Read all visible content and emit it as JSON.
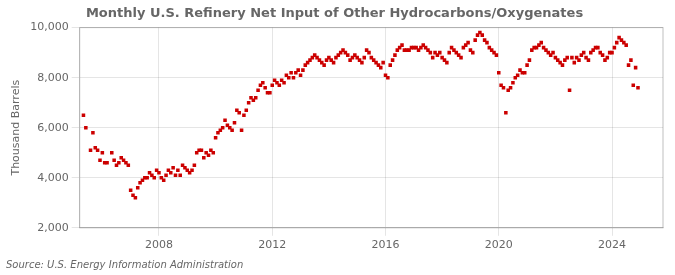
{
  "chart_data": {
    "type": "scatter",
    "title": "Monthly U.S. Refinery Net Input of Other Hydrocarbons/Oxygenates",
    "ylabel": "Thousand Barrels",
    "annotations": [
      "Source: U.S. Energy Information Administration"
    ],
    "color": "#cc0000",
    "marker": "square",
    "grid": true,
    "xlim": [
      2005.2,
      2025.8
    ],
    "xticks": [
      2008,
      2012,
      2016,
      2020,
      2024
    ],
    "ylim": [
      2000,
      10000
    ],
    "yticks": [
      {
        "value": 2000,
        "label": "2,000"
      },
      {
        "value": 4000,
        "label": "4,000"
      },
      {
        "value": 6000,
        "label": "6,000"
      },
      {
        "value": 8000,
        "label": "8,000"
      },
      {
        "value": 10000,
        "label": "10,000"
      }
    ],
    "x": [
      2005.333,
      2005.417,
      2005.583,
      2005.667,
      2005.75,
      2005.833,
      2005.917,
      2006.0,
      2006.083,
      2006.167,
      2006.333,
      2006.417,
      2006.5,
      2006.583,
      2006.667,
      2006.75,
      2006.833,
      2006.917,
      2007.0,
      2007.083,
      2007.167,
      2007.25,
      2007.333,
      2007.417,
      2007.5,
      2007.583,
      2007.667,
      2007.75,
      2007.833,
      2007.917,
      2008.0,
      2008.083,
      2008.167,
      2008.25,
      2008.333,
      2008.417,
      2008.5,
      2008.583,
      2008.667,
      2008.75,
      2008.833,
      2008.917,
      2009.0,
      2009.083,
      2009.167,
      2009.25,
      2009.333,
      2009.417,
      2009.5,
      2009.583,
      2009.667,
      2009.75,
      2009.833,
      2009.917,
      2010.0,
      2010.083,
      2010.167,
      2010.25,
      2010.333,
      2010.417,
      2010.5,
      2010.583,
      2010.667,
      2010.75,
      2010.833,
      2010.917,
      2011.0,
      2011.083,
      2011.167,
      2011.25,
      2011.333,
      2011.417,
      2011.5,
      2011.583,
      2011.667,
      2011.75,
      2011.833,
      2011.917,
      2012.0,
      2012.083,
      2012.167,
      2012.25,
      2012.333,
      2012.417,
      2012.5,
      2012.583,
      2012.667,
      2012.75,
      2012.833,
      2012.917,
      2013.0,
      2013.083,
      2013.167,
      2013.25,
      2013.333,
      2013.417,
      2013.5,
      2013.583,
      2013.667,
      2013.75,
      2013.833,
      2013.917,
      2014.0,
      2014.083,
      2014.167,
      2014.25,
      2014.333,
      2014.417,
      2014.5,
      2014.583,
      2014.667,
      2014.75,
      2014.833,
      2014.917,
      2015.0,
      2015.083,
      2015.167,
      2015.25,
      2015.333,
      2015.417,
      2015.5,
      2015.583,
      2015.667,
      2015.75,
      2015.833,
      2015.917,
      2016.0,
      2016.083,
      2016.167,
      2016.25,
      2016.333,
      2016.417,
      2016.5,
      2016.583,
      2016.667,
      2016.75,
      2016.833,
      2016.917,
      2017.0,
      2017.083,
      2017.167,
      2017.25,
      2017.333,
      2017.417,
      2017.5,
      2017.583,
      2017.667,
      2017.75,
      2017.833,
      2017.917,
      2018.0,
      2018.083,
      2018.167,
      2018.25,
      2018.333,
      2018.417,
      2018.5,
      2018.583,
      2018.667,
      2018.75,
      2018.833,
      2018.917,
      2019.0,
      2019.083,
      2019.167,
      2019.25,
      2019.333,
      2019.417,
      2019.5,
      2019.583,
      2019.667,
      2019.75,
      2019.833,
      2019.917,
      2020.0,
      2020.083,
      2020.167,
      2020.25,
      2020.333,
      2020.417,
      2020.5,
      2020.583,
      2020.667,
      2020.75,
      2020.833,
      2020.917,
      2021.0,
      2021.083,
      2021.167,
      2021.25,
      2021.333,
      2021.417,
      2021.5,
      2021.583,
      2021.667,
      2021.75,
      2021.833,
      2021.917,
      2022.0,
      2022.083,
      2022.167,
      2022.25,
      2022.333,
      2022.417,
      2022.5,
      2022.583,
      2022.667,
      2022.75,
      2022.833,
      2022.917,
      2023.0,
      2023.083,
      2023.167,
      2023.25,
      2023.333,
      2023.417,
      2023.5,
      2023.583,
      2023.667,
      2023.75,
      2023.833,
      2023.917,
      2024.0,
      2024.083,
      2024.167,
      2024.25,
      2024.333,
      2024.417,
      2024.5,
      2024.583,
      2024.667,
      2024.75,
      2024.833,
      2024.917
    ],
    "values": [
      6500,
      6000,
      5100,
      5800,
      5200,
      5100,
      4700,
      5000,
      4600,
      4600,
      5000,
      4700,
      4500,
      4600,
      4800,
      4700,
      4600,
      4500,
      3500,
      3300,
      3200,
      3600,
      3800,
      3900,
      4000,
      4000,
      4200,
      4100,
      4000,
      4300,
      4200,
      4000,
      3900,
      4100,
      4300,
      4200,
      4400,
      4100,
      4300,
      4100,
      4500,
      4400,
      4300,
      4200,
      4300,
      4500,
      5000,
      5100,
      5100,
      4800,
      5000,
      4900,
      5100,
      5000,
      5600,
      5800,
      5900,
      6000,
      6300,
      6100,
      6000,
      5900,
      6200,
      6700,
      6600,
      5900,
      6500,
      6700,
      7000,
      7200,
      7100,
      7200,
      7500,
      7700,
      7800,
      7600,
      7400,
      7400,
      7700,
      7900,
      7800,
      7700,
      7900,
      7800,
      8100,
      8000,
      8200,
      8000,
      8200,
      8300,
      8100,
      8300,
      8500,
      8600,
      8700,
      8800,
      8900,
      8800,
      8700,
      8600,
      8500,
      8700,
      8800,
      8700,
      8600,
      8800,
      8900,
      9000,
      9100,
      9000,
      8900,
      8700,
      8800,
      8900,
      8800,
      8700,
      8600,
      8800,
      9100,
      9000,
      8800,
      8700,
      8600,
      8500,
      8400,
      8600,
      8100,
      8000,
      8500,
      8700,
      8900,
      9100,
      9200,
      9300,
      9100,
      9100,
      9100,
      9200,
      9200,
      9200,
      9100,
      9200,
      9300,
      9200,
      9100,
      9000,
      8800,
      9000,
      8900,
      9000,
      8800,
      8700,
      8600,
      9000,
      9200,
      9100,
      9000,
      8900,
      8800,
      9200,
      9300,
      9400,
      9100,
      9000,
      9500,
      9700,
      9800,
      9700,
      9500,
      9400,
      9200,
      9100,
      9000,
      8900,
      8200,
      7700,
      7600,
      6600,
      7500,
      7600,
      7800,
      8000,
      8100,
      8300,
      8200,
      8200,
      8500,
      8700,
      9100,
      9200,
      9200,
      9300,
      9400,
      9200,
      9100,
      9000,
      8900,
      9000,
      8800,
      8700,
      8600,
      8500,
      8700,
      8800,
      7500,
      8800,
      8600,
      8800,
      8700,
      8900,
      9000,
      8800,
      8700,
      9000,
      9100,
      9200,
      9200,
      9000,
      8900,
      8700,
      8800,
      9000,
      9000,
      9200,
      9400,
      9600,
      9500,
      9400,
      9300,
      8500,
      8700,
      7700,
      8400,
      7600
    ]
  }
}
